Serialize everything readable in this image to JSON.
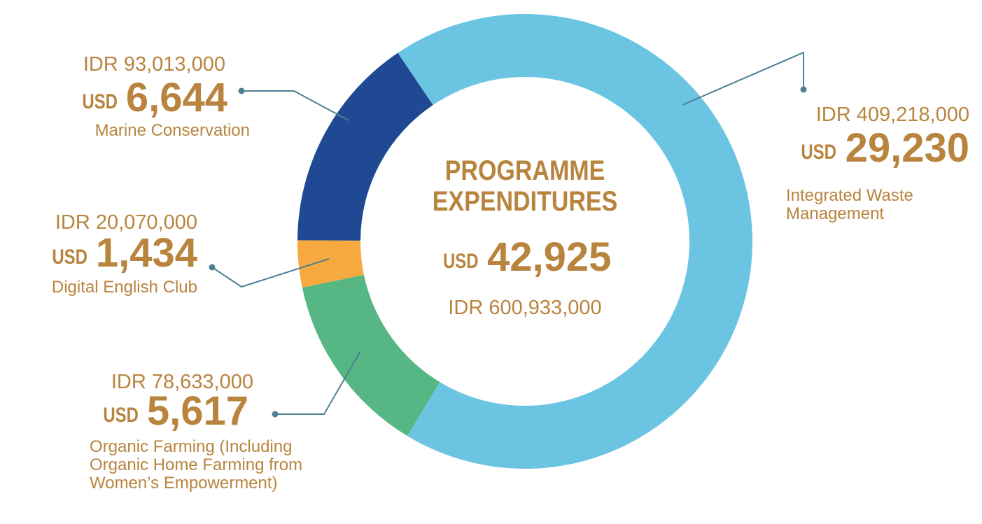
{
  "chart_data": {
    "type": "pie",
    "title": "PROGRAMME EXPENDITURES",
    "currency": "USD",
    "total_label": "42,925",
    "total_idr": "IDR 600,933,000",
    "categories": [
      "Integrated Waste Management",
      "Organic Farming (Including Organic Home Farming from Women’s Empowerment)",
      "Digital English Club",
      "Marine Conservation"
    ],
    "values": [
      29230,
      5617,
      1434,
      6644
    ],
    "value_labels": [
      "29,230",
      "5,617",
      "1,434",
      "6,644"
    ],
    "idr_labels": [
      "IDR 409,218,000",
      "IDR 78,633,000",
      "IDR 20,070,000",
      "IDR 93,013,000"
    ],
    "colors": [
      "#6cc4e3",
      "#56b785",
      "#f5a93e",
      "#1f4a93"
    ],
    "startangle": -34,
    "donut": true
  }
}
